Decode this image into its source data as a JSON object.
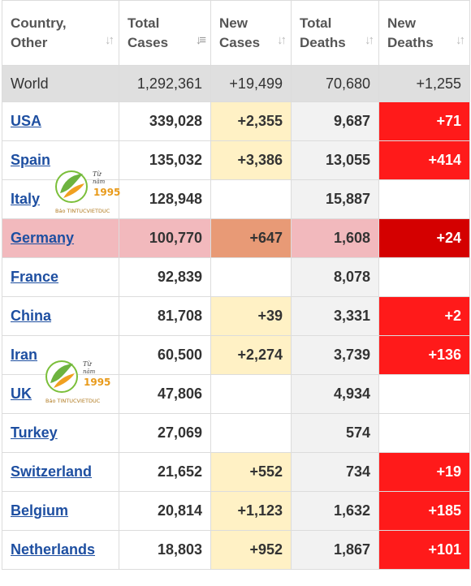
{
  "headers": {
    "country": "Country, Other",
    "total_cases": "Total Cases",
    "new_cases": "New Cases",
    "total_deaths": "Total Deaths",
    "new_deaths": "New Deaths"
  },
  "world": {
    "country": "World",
    "total_cases": "1,292,361",
    "new_cases": "+19,499",
    "total_deaths": "70,680",
    "new_deaths": "+1,255"
  },
  "rows": [
    {
      "country": "USA",
      "total_cases": "339,028",
      "new_cases": "+2,355",
      "total_deaths": "9,687",
      "new_deaths": "+71"
    },
    {
      "country": "Spain",
      "total_cases": "135,032",
      "new_cases": "+3,386",
      "total_deaths": "13,055",
      "new_deaths": "+414"
    },
    {
      "country": "Italy",
      "total_cases": "128,948",
      "new_cases": "",
      "total_deaths": "15,887",
      "new_deaths": ""
    },
    {
      "country": "Germany",
      "total_cases": "100,770",
      "new_cases": "+647",
      "total_deaths": "1,608",
      "new_deaths": "+24"
    },
    {
      "country": "France",
      "total_cases": "92,839",
      "new_cases": "",
      "total_deaths": "8,078",
      "new_deaths": ""
    },
    {
      "country": "China",
      "total_cases": "81,708",
      "new_cases": "+39",
      "total_deaths": "3,331",
      "new_deaths": "+2"
    },
    {
      "country": "Iran",
      "total_cases": "60,500",
      "new_cases": "+2,274",
      "total_deaths": "3,739",
      "new_deaths": "+136"
    },
    {
      "country": "UK",
      "total_cases": "47,806",
      "new_cases": "",
      "total_deaths": "4,934",
      "new_deaths": ""
    },
    {
      "country": "Turkey",
      "total_cases": "27,069",
      "new_cases": "",
      "total_deaths": "574",
      "new_deaths": ""
    },
    {
      "country": "Switzerland",
      "total_cases": "21,652",
      "new_cases": "+552",
      "total_deaths": "734",
      "new_deaths": "+19"
    },
    {
      "country": "Belgium",
      "total_cases": "20,814",
      "new_cases": "+1,123",
      "total_deaths": "1,632",
      "new_deaths": "+185"
    },
    {
      "country": "Netherlands",
      "total_cases": "18,803",
      "new_cases": "+952",
      "total_deaths": "1,867",
      "new_deaths": "+101"
    }
  ],
  "highlighted_row": "Germany",
  "watermark": {
    "line1": "Từ",
    "line2": "năm",
    "year": "1995",
    "brand": "Báo TINTUCVIETDUC"
  },
  "colors": {
    "link": "#1e4fa1",
    "new_cases_bg": "#fff1c5",
    "new_deaths_bg": "#ff1a1a",
    "highlight_row_bg": "#f2b9bd",
    "world_row_bg": "#dfdfdf"
  },
  "icons": {
    "sort": "sort-arrows-icon",
    "sort_active": "sort-desc-icon",
    "watermark": "tintucvietduc-logo"
  }
}
